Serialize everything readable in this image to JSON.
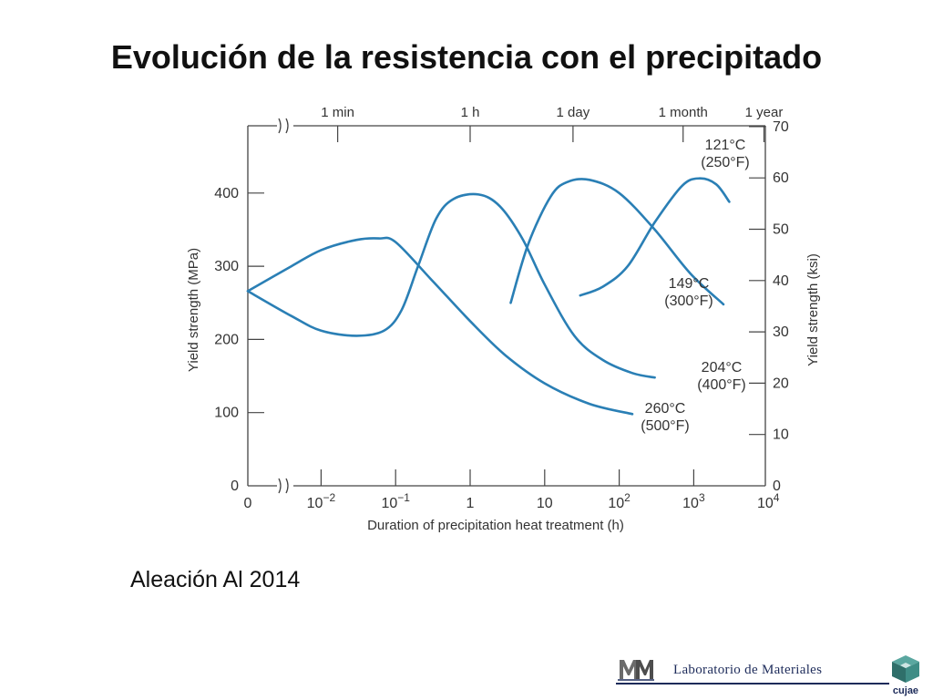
{
  "slide": {
    "title": "Evolución de la resistencia con el precipitado",
    "caption": "Aleación Al 2014"
  },
  "footer": {
    "lab_name": "Laboratorio de Materiales",
    "brand": "cujae",
    "left_logo_icon": "lm-logo-icon",
    "right_logo_icon": "cujae-cube-icon"
  },
  "chart_data": {
    "type": "line",
    "title": "",
    "xlabel": "Duration of precipitation heat treatment (h)",
    "ylabel": "Yield strength (MPa)",
    "ylabel_right": "Yield strength (ksi)",
    "x_scale": "log",
    "x_tick_labels": [
      {
        "value": 0,
        "label": "0"
      },
      {
        "value": 0.01,
        "label": "10",
        "exp": "−2"
      },
      {
        "value": 0.1,
        "label": "10",
        "exp": "−1"
      },
      {
        "value": 1,
        "label": "1"
      },
      {
        "value": 10,
        "label": "10"
      },
      {
        "value": 100,
        "label": "10",
        "exp": "2"
      },
      {
        "value": 1000,
        "label": "10",
        "exp": "3"
      },
      {
        "value": 10000,
        "label": "10",
        "exp": "4"
      }
    ],
    "top_axis_ticks": [
      {
        "value": 0.0167,
        "label": "1 min"
      },
      {
        "value": 1,
        "label": "1 h"
      },
      {
        "value": 24,
        "label": "1 day"
      },
      {
        "value": 720,
        "label": "1 month"
      },
      {
        "value": 8760,
        "label": "1 year"
      }
    ],
    "ylim": [
      0,
      500
    ],
    "y_ticks": [
      0,
      100,
      200,
      300,
      400
    ],
    "ksi_ticks": [
      0,
      10,
      20,
      30,
      40,
      50,
      60,
      70
    ],
    "line_color": "#2a7fb5",
    "series": [
      {
        "name": "260°C (500°F)",
        "label_line1": "260°C",
        "label_line2": "(500°F)",
        "points": [
          [
            0.0015,
            266
          ],
          [
            0.004,
            300
          ],
          [
            0.01,
            322
          ],
          [
            0.03,
            336
          ],
          [
            0.06,
            338
          ],
          [
            0.1,
            333
          ],
          [
            0.3,
            282
          ],
          [
            1,
            225
          ],
          [
            3,
            178
          ],
          [
            10,
            140
          ],
          [
            40,
            112
          ],
          [
            150,
            98
          ]
        ]
      },
      {
        "name": "204°C (400°F)",
        "label_line1": "204°C",
        "label_line2": "(400°F)",
        "points": [
          [
            0.0015,
            266
          ],
          [
            0.004,
            232
          ],
          [
            0.01,
            212
          ],
          [
            0.03,
            205
          ],
          [
            0.07,
            212
          ],
          [
            0.12,
            240
          ],
          [
            0.2,
            300
          ],
          [
            0.35,
            365
          ],
          [
            0.6,
            392
          ],
          [
            1.3,
            398
          ],
          [
            2.5,
            382
          ],
          [
            5,
            338
          ],
          [
            10,
            275
          ],
          [
            25,
            205
          ],
          [
            60,
            172
          ],
          [
            150,
            154
          ],
          [
            300,
            148
          ]
        ]
      },
      {
        "name": "149°C (300°F)",
        "label_line1": "149°C",
        "label_line2": "(300°F)",
        "points": [
          [
            3.5,
            250
          ],
          [
            6,
            330
          ],
          [
            12,
            395
          ],
          [
            20,
            415
          ],
          [
            40,
            418
          ],
          [
            100,
            400
          ],
          [
            300,
            350
          ],
          [
            900,
            290
          ],
          [
            2500,
            248
          ]
        ]
      },
      {
        "name": "121°C (250°F)",
        "label_line1": "121°C",
        "label_line2": "(250°F)",
        "points": [
          [
            30,
            260
          ],
          [
            60,
            272
          ],
          [
            130,
            300
          ],
          [
            300,
            360
          ],
          [
            700,
            410
          ],
          [
            1200,
            420
          ],
          [
            2000,
            412
          ],
          [
            3000,
            388
          ]
        ]
      }
    ]
  }
}
